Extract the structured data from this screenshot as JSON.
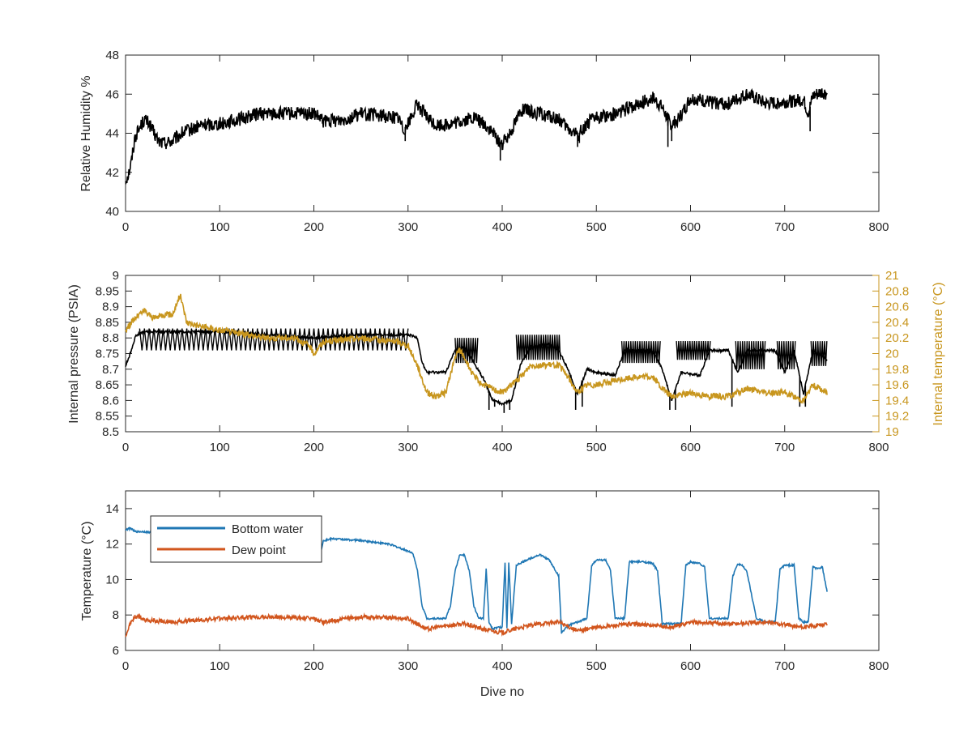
{
  "colors": {
    "axis": "#262626",
    "humidity": "#000000",
    "pressure": "#000000",
    "internal_temperature": "#C8961E",
    "bottom_water": "#1F77B4",
    "dew_point": "#D2561E"
  },
  "chart_data": [
    {
      "type": "line",
      "id": "humidity",
      "xlabel": "",
      "ylabel": "Relative Humidity %",
      "xlim": [
        0,
        800
      ],
      "ylim": [
        40,
        48
      ],
      "xticks": [
        0,
        100,
        200,
        300,
        400,
        500,
        600,
        700,
        800
      ],
      "yticks": [
        40,
        42,
        44,
        46,
        48
      ],
      "xtick_labels": [
        "0",
        "100",
        "200",
        "300",
        "400",
        "500",
        "600",
        "700",
        "800"
      ],
      "ytick_labels": [
        "40",
        "42",
        "44",
        "46",
        "48"
      ],
      "grid": false,
      "series": [
        {
          "color_key": "humidity",
          "noise": 0.35,
          "x": [
            0,
            3,
            6,
            10,
            15,
            20,
            25,
            30,
            35,
            40,
            50,
            60,
            70,
            80,
            100,
            120,
            140,
            160,
            180,
            200,
            210,
            230,
            250,
            270,
            290,
            295,
            300,
            310,
            320,
            330,
            350,
            370,
            380,
            390,
            400,
            410,
            420,
            440,
            460,
            470,
            480,
            490,
            500,
            520,
            540,
            560,
            570,
            575,
            580,
            590,
            600,
            620,
            640,
            660,
            680,
            700,
            720,
            725,
            730,
            740,
            745
          ],
          "y": [
            41.6,
            41.9,
            42.5,
            43.8,
            44.3,
            44.7,
            44.5,
            44.0,
            43.6,
            43.5,
            43.6,
            44.0,
            44.2,
            44.4,
            44.5,
            44.7,
            45.0,
            45.0,
            45.0,
            45.0,
            44.6,
            44.7,
            45.0,
            44.9,
            44.8,
            44.2,
            44.5,
            45.5,
            44.8,
            44.4,
            44.5,
            44.8,
            44.5,
            44.0,
            43.4,
            44.2,
            45.2,
            45.0,
            44.7,
            44.2,
            43.9,
            44.5,
            44.8,
            45.0,
            45.4,
            45.8,
            45.3,
            44.8,
            44.4,
            44.9,
            45.8,
            45.6,
            45.5,
            46.0,
            45.5,
            45.6,
            45.7,
            45.0,
            45.9,
            46.1,
            46.0
          ],
          "spikes": [
            [
              297,
              43.6
            ],
            [
              398,
              42.6
            ],
            [
              480,
              43.3
            ],
            [
              482,
              43.5
            ],
            [
              576,
              43.3
            ],
            [
              580,
              43.6
            ],
            [
              727,
              44.1
            ]
          ]
        }
      ]
    },
    {
      "type": "line",
      "id": "pressure",
      "xlabel": "",
      "ylabel": "Internal pressure (PSIA)",
      "y2label": "Internal temperature (°C)",
      "xlim": [
        0,
        800
      ],
      "ylim": [
        8.5,
        9
      ],
      "y2lim": [
        19,
        21
      ],
      "xticks": [
        0,
        100,
        200,
        300,
        400,
        500,
        600,
        700,
        800
      ],
      "yticks": [
        8.5,
        8.55,
        8.6,
        8.65,
        8.7,
        8.75,
        8.8,
        8.85,
        8.9,
        8.95,
        9
      ],
      "y2ticks": [
        19,
        19.2,
        19.4,
        19.6,
        19.8,
        20,
        20.2,
        20.4,
        20.6,
        20.8,
        21
      ],
      "xtick_labels": [
        "0",
        "100",
        "200",
        "300",
        "400",
        "500",
        "600",
        "700",
        "800"
      ],
      "ytick_labels": [
        "8.5",
        "8.55",
        "8.6",
        "8.65",
        "8.7",
        "8.75",
        "8.8",
        "8.85",
        "8.9",
        "8.95",
        "9"
      ],
      "y2tick_labels": [
        "19",
        "19.2",
        "19.4",
        "19.6",
        "19.8",
        "20",
        "20.2",
        "20.4",
        "20.6",
        "20.8",
        "21"
      ],
      "grid": false,
      "series": [
        {
          "name": "Internal pressure",
          "axis": "left",
          "color_key": "pressure",
          "noise": 0.004,
          "x": [
            0,
            5,
            10,
            12,
            20,
            50,
            100,
            150,
            200,
            250,
            300,
            310,
            315,
            320,
            340,
            350,
            360,
            370,
            380,
            390,
            400,
            410,
            420,
            430,
            450,
            460,
            470,
            480,
            490,
            500,
            520,
            530,
            560,
            570,
            580,
            590,
            610,
            620,
            640,
            650,
            660,
            690,
            700,
            710,
            720,
            730,
            745
          ],
          "y": [
            8.71,
            8.75,
            8.8,
            8.81,
            8.82,
            8.82,
            8.82,
            8.81,
            8.8,
            8.81,
            8.81,
            8.8,
            8.72,
            8.69,
            8.69,
            8.76,
            8.77,
            8.72,
            8.67,
            8.6,
            8.59,
            8.6,
            8.72,
            8.77,
            8.78,
            8.76,
            8.7,
            8.62,
            8.7,
            8.69,
            8.68,
            8.76,
            8.76,
            8.7,
            8.6,
            8.69,
            8.68,
            8.76,
            8.76,
            8.69,
            8.76,
            8.76,
            8.69,
            8.76,
            8.62,
            8.76,
            8.73
          ],
          "bands": [
            [
              15,
              300,
              8.76,
              8.83,
              2.5
            ],
            [
              350,
              375,
              8.72,
              8.8,
              1.2
            ],
            [
              415,
              462,
              8.73,
              8.81,
              1.2
            ],
            [
              527,
              568,
              8.72,
              8.79,
              1.2
            ],
            [
              585,
              622,
              8.73,
              8.79,
              1.2
            ],
            [
              648,
              680,
              8.7,
              8.79,
              1.2
            ],
            [
              692,
              712,
              8.7,
              8.79,
              1.2
            ],
            [
              728,
              745,
              8.71,
              8.79,
              1.2
            ]
          ],
          "spikes": [
            [
              386,
              8.57
            ],
            [
              392,
              8.58
            ],
            [
              402,
              8.56
            ],
            [
              408,
              8.57
            ],
            [
              478,
              8.57
            ],
            [
              485,
              8.58
            ],
            [
              578,
              8.57
            ],
            [
              584,
              8.57
            ],
            [
              644,
              8.58
            ],
            [
              716,
              8.58
            ],
            [
              722,
              8.58
            ]
          ]
        },
        {
          "name": "Internal temperature",
          "axis": "right",
          "color_key": "internal_temperature",
          "noise": 0.04,
          "x": [
            0,
            10,
            20,
            30,
            40,
            50,
            58,
            65,
            80,
            100,
            150,
            180,
            195,
            200,
            210,
            250,
            290,
            300,
            310,
            320,
            330,
            340,
            350,
            355,
            360,
            370,
            380,
            400,
            420,
            430,
            460,
            470,
            480,
            490,
            500,
            540,
            560,
            570,
            580,
            600,
            620,
            640,
            660,
            680,
            700,
            720,
            730,
            745
          ],
          "y": [
            20.3,
            20.45,
            20.55,
            20.45,
            20.5,
            20.5,
            20.75,
            20.4,
            20.35,
            20.3,
            20.2,
            20.2,
            20.1,
            20.0,
            20.15,
            20.2,
            20.15,
            20.1,
            19.85,
            19.5,
            19.45,
            19.5,
            19.95,
            20.05,
            19.95,
            19.7,
            19.6,
            19.5,
            19.7,
            19.85,
            19.85,
            19.7,
            19.5,
            19.6,
            19.6,
            19.7,
            19.7,
            19.55,
            19.45,
            19.5,
            19.45,
            19.45,
            19.55,
            19.5,
            19.5,
            19.4,
            19.6,
            19.5
          ]
        }
      ]
    },
    {
      "type": "line",
      "id": "temperature",
      "xlabel": "Dive no",
      "ylabel": "Temperature (°C)",
      "xlim": [
        0,
        800
      ],
      "ylim": [
        6,
        15
      ],
      "xticks": [
        0,
        100,
        200,
        300,
        400,
        500,
        600,
        700,
        800
      ],
      "yticks": [
        6,
        8,
        10,
        12,
        14
      ],
      "xtick_labels": [
        "0",
        "100",
        "200",
        "300",
        "400",
        "500",
        "600",
        "700",
        "800"
      ],
      "ytick_labels": [
        "6",
        "8",
        "10",
        "12",
        "14"
      ],
      "grid": false,
      "legend": {
        "position": "top-left",
        "entries": [
          "Bottom water",
          "Dew point"
        ]
      },
      "series": [
        {
          "name": "Bottom water",
          "color_key": "bottom_water",
          "noise": 0.05,
          "x": [
            0,
            5,
            10,
            15,
            20,
            50,
            100,
            150,
            200,
            205,
            210,
            220,
            250,
            280,
            300,
            305,
            310,
            315,
            320,
            340,
            345,
            350,
            355,
            360,
            365,
            370,
            375,
            380,
            383,
            386,
            390,
            395,
            400,
            403,
            405,
            407,
            410,
            415,
            430,
            440,
            450,
            460,
            463,
            470,
            490,
            495,
            500,
            510,
            515,
            520,
            530,
            535,
            550,
            560,
            565,
            570,
            590,
            595,
            600,
            610,
            615,
            620,
            640,
            645,
            650,
            655,
            660,
            670,
            680,
            690,
            695,
            700,
            710,
            715,
            720,
            725,
            730,
            735,
            740,
            745
          ],
          "y": [
            12.8,
            12.9,
            12.7,
            12.7,
            12.7,
            12.5,
            12.2,
            12.0,
            11.8,
            11.0,
            12.2,
            12.3,
            12.2,
            12.0,
            11.6,
            11.5,
            10.5,
            8.5,
            7.8,
            7.8,
            8.5,
            10.5,
            11.4,
            11.4,
            10.5,
            8.5,
            7.8,
            7.8,
            10.6,
            7.6,
            7.2,
            7.3,
            7.3,
            11.0,
            7.3,
            11.0,
            7.5,
            10.8,
            11.2,
            11.4,
            11.1,
            10.2,
            7.0,
            7.4,
            7.8,
            10.8,
            11.1,
            11.1,
            10.5,
            7.8,
            7.8,
            11.0,
            11.0,
            10.9,
            10.5,
            7.5,
            7.5,
            10.8,
            11.0,
            10.9,
            10.7,
            7.8,
            7.8,
            10.2,
            10.9,
            10.8,
            10.4,
            7.8,
            7.6,
            7.6,
            10.6,
            10.8,
            10.8,
            7.8,
            7.6,
            7.6,
            10.7,
            10.6,
            10.7,
            9.3
          ]
        },
        {
          "name": "Dew point",
          "color_key": "dew_point",
          "noise": 0.12,
          "x": [
            0,
            5,
            10,
            15,
            20,
            50,
            100,
            150,
            200,
            210,
            250,
            300,
            320,
            340,
            360,
            380,
            400,
            420,
            440,
            460,
            480,
            500,
            540,
            580,
            600,
            640,
            680,
            720,
            745
          ],
          "y": [
            6.8,
            7.5,
            7.9,
            7.9,
            7.7,
            7.6,
            7.8,
            7.9,
            7.8,
            7.6,
            7.9,
            7.8,
            7.2,
            7.4,
            7.5,
            7.2,
            7.0,
            7.3,
            7.5,
            7.6,
            7.1,
            7.3,
            7.5,
            7.3,
            7.6,
            7.5,
            7.6,
            7.3,
            7.5
          ]
        }
      ]
    }
  ]
}
